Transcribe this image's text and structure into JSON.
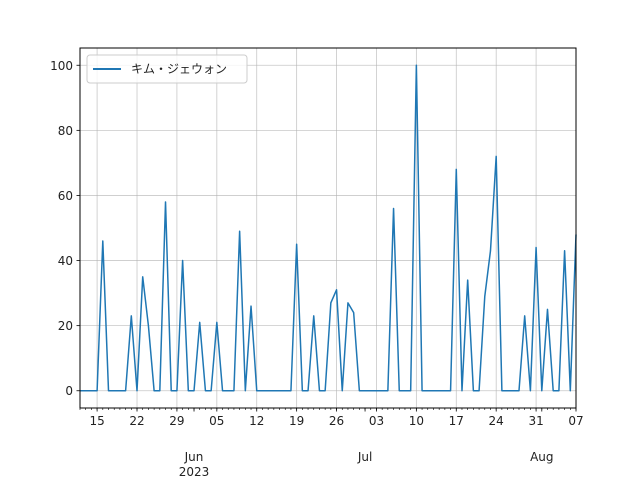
{
  "chart_data": {
    "type": "line",
    "title": "",
    "xlabel": "",
    "ylabel": "",
    "xlim": [
      "2023-05-12",
      "2023-08-07"
    ],
    "ylim": [
      -5.3,
      105.3
    ],
    "grid": true,
    "legend_position": "upper-left",
    "line_color": "#1f77b4",
    "yticks": [
      0,
      20,
      40,
      60,
      80,
      100
    ],
    "ytick_labels": [
      "0",
      "20",
      "40",
      "60",
      "80",
      "100"
    ],
    "xtick_dates": [
      "2023-05-15",
      "2023-05-22",
      "2023-05-29",
      "2023-06-05",
      "2023-06-12",
      "2023-06-19",
      "2023-06-26",
      "2023-07-03",
      "2023-07-10",
      "2023-07-17",
      "2023-07-24",
      "2023-07-31",
      "2023-08-07"
    ],
    "xtick_labels": [
      "15",
      "22",
      "29",
      "05",
      "12",
      "19",
      "26",
      "03",
      "10",
      "17",
      "24",
      "31",
      "07"
    ],
    "month_labels": [
      {
        "date": "2023-06-01",
        "text": "Jun"
      },
      {
        "date": "2023-07-01",
        "text": "Jul"
      },
      {
        "date": "2023-08-01",
        "text": "Aug"
      }
    ],
    "year_label": {
      "date": "2023-06-01",
      "text": "2023"
    },
    "series": [
      {
        "name": "キム・ジェウォン",
        "x": [
          "2023-05-12",
          "2023-05-13",
          "2023-05-14",
          "2023-05-15",
          "2023-05-16",
          "2023-05-17",
          "2023-05-18",
          "2023-05-19",
          "2023-05-20",
          "2023-05-21",
          "2023-05-22",
          "2023-05-23",
          "2023-05-24",
          "2023-05-25",
          "2023-05-26",
          "2023-05-27",
          "2023-05-28",
          "2023-05-29",
          "2023-05-30",
          "2023-05-31",
          "2023-06-01",
          "2023-06-02",
          "2023-06-03",
          "2023-06-04",
          "2023-06-05",
          "2023-06-06",
          "2023-06-07",
          "2023-06-08",
          "2023-06-09",
          "2023-06-10",
          "2023-06-11",
          "2023-06-12",
          "2023-06-13",
          "2023-06-14",
          "2023-06-15",
          "2023-06-16",
          "2023-06-17",
          "2023-06-18",
          "2023-06-19",
          "2023-06-20",
          "2023-06-21",
          "2023-06-22",
          "2023-06-23",
          "2023-06-24",
          "2023-06-25",
          "2023-06-26",
          "2023-06-27",
          "2023-06-28",
          "2023-06-29",
          "2023-06-30",
          "2023-07-01",
          "2023-07-02",
          "2023-07-03",
          "2023-07-04",
          "2023-07-05",
          "2023-07-06",
          "2023-07-07",
          "2023-07-08",
          "2023-07-09",
          "2023-07-10",
          "2023-07-11",
          "2023-07-12",
          "2023-07-13",
          "2023-07-14",
          "2023-07-15",
          "2023-07-16",
          "2023-07-17",
          "2023-07-18",
          "2023-07-19",
          "2023-07-20",
          "2023-07-21",
          "2023-07-22",
          "2023-07-23",
          "2023-07-24",
          "2023-07-25",
          "2023-07-26",
          "2023-07-27",
          "2023-07-28",
          "2023-07-29",
          "2023-07-30",
          "2023-07-31",
          "2023-08-01",
          "2023-08-02",
          "2023-08-03",
          "2023-08-04",
          "2023-08-05",
          "2023-08-06",
          "2023-08-07"
        ],
        "y": [
          0,
          0,
          0,
          0,
          46,
          0,
          0,
          0,
          0,
          23,
          0,
          35,
          20,
          0,
          0,
          58,
          0,
          0,
          40,
          0,
          0,
          21,
          0,
          0,
          21,
          0,
          0,
          0,
          49,
          0,
          26,
          0,
          0,
          0,
          0,
          0,
          0,
          0,
          45,
          0,
          0,
          23,
          0,
          0,
          27,
          31,
          0,
          27,
          24,
          0,
          0,
          0,
          0,
          0,
          0,
          56,
          0,
          0,
          0,
          100,
          0,
          0,
          0,
          0,
          0,
          0,
          68,
          0,
          34,
          0,
          0,
          29,
          43,
          72,
          0,
          0,
          0,
          0,
          23,
          0,
          44,
          0,
          25,
          0,
          0,
          43,
          0,
          48
        ]
      }
    ]
  }
}
